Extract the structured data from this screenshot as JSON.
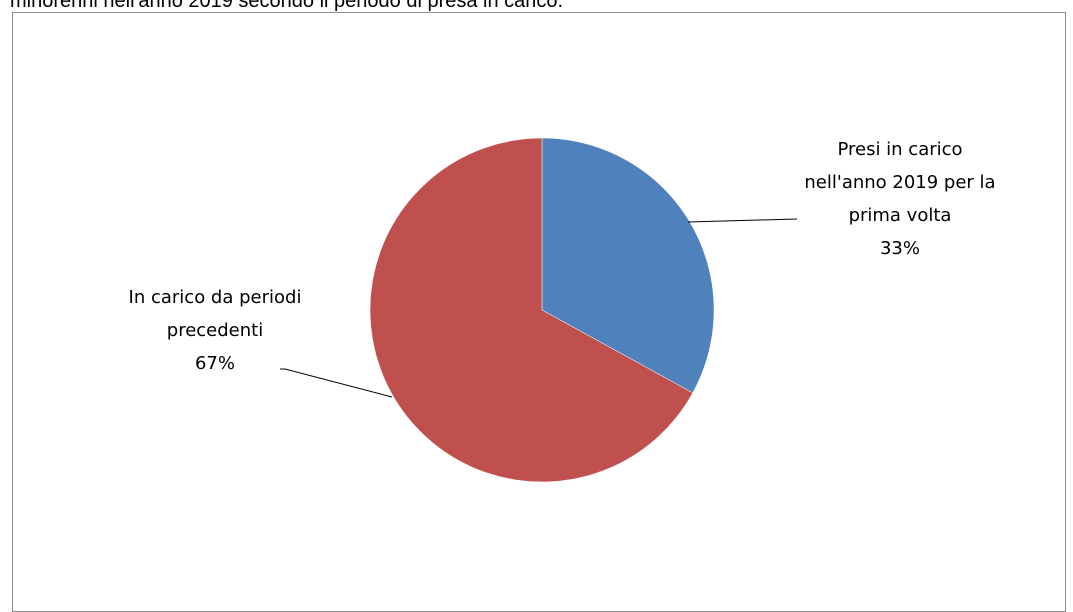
{
  "chart_data": {
    "type": "pie",
    "title": "minorenni nell'anno 2019 secondo il periodo di presa in carico.",
    "categories": [
      "Presi in carico nell'anno 2019 per la prima volta",
      "In carico da periodi precedenti"
    ],
    "values": [
      33,
      67
    ],
    "value_labels": [
      "33%",
      "67%"
    ],
    "colors": [
      "#4f81bd",
      "#c0504d"
    ]
  }
}
